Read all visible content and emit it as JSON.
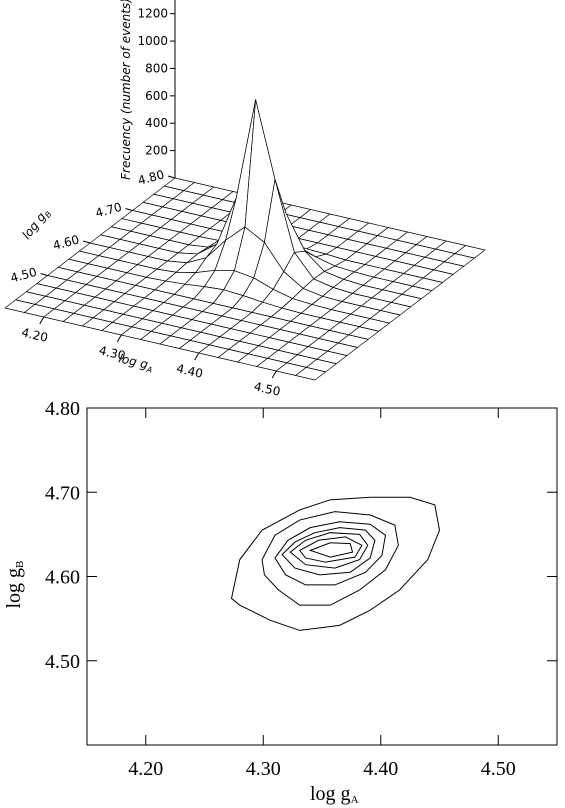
{
  "chart_data": [
    {
      "type": "surface",
      "xlabel": "log g",
      "xlabel_sub": "A",
      "ylabel": "log g",
      "ylabel_sub": "B",
      "zlabel": "Frecuency (number of events)",
      "x": [
        4.15,
        4.175,
        4.2,
        4.225,
        4.25,
        4.275,
        4.3,
        4.325,
        4.35,
        4.375,
        4.4,
        4.425,
        4.45,
        4.475,
        4.5,
        4.525,
        4.55
      ],
      "y": [
        4.4,
        4.425,
        4.45,
        4.475,
        4.5,
        4.525,
        4.55,
        4.575,
        4.6,
        4.625,
        4.65,
        4.675,
        4.7,
        4.725,
        4.75,
        4.775,
        4.8
      ],
      "z": [
        [
          0,
          0,
          0,
          0,
          0,
          0,
          0,
          0,
          0,
          0,
          0,
          0,
          0,
          0,
          0,
          0,
          0
        ],
        [
          0,
          0,
          0,
          0,
          0,
          0,
          0,
          0,
          0,
          0,
          0,
          0,
          0,
          0,
          0,
          0,
          0
        ],
        [
          0,
          0,
          0,
          0,
          0,
          0,
          0,
          0,
          0,
          0,
          0,
          0,
          0,
          0,
          0,
          0,
          0
        ],
        [
          0,
          0,
          0,
          0,
          0,
          0,
          0,
          0,
          0,
          0,
          0,
          0,
          0,
          0,
          0,
          0,
          0
        ],
        [
          0,
          0,
          0,
          0,
          0,
          0,
          0,
          0,
          0,
          0,
          0,
          0,
          0,
          0,
          0,
          0,
          0
        ],
        [
          0,
          0,
          0,
          0,
          0,
          0,
          0,
          0,
          0,
          0,
          0,
          0,
          0,
          0,
          0,
          0,
          0
        ],
        [
          0,
          0,
          0,
          0,
          0,
          5,
          15,
          30,
          40,
          30,
          15,
          5,
          0,
          0,
          0,
          0,
          0
        ],
        [
          0,
          0,
          0,
          0,
          0,
          10,
          40,
          90,
          120,
          100,
          50,
          15,
          5,
          0,
          0,
          0,
          0
        ],
        [
          0,
          0,
          0,
          0,
          0,
          20,
          90,
          250,
          380,
          300,
          120,
          30,
          5,
          0,
          0,
          0,
          0
        ],
        [
          0,
          0,
          0,
          0,
          0,
          25,
          130,
          500,
          1250,
          700,
          200,
          40,
          10,
          0,
          0,
          0,
          0
        ],
        [
          0,
          0,
          0,
          0,
          0,
          15,
          90,
          300,
          550,
          400,
          150,
          35,
          10,
          0,
          0,
          0,
          0
        ],
        [
          0,
          0,
          0,
          0,
          0,
          5,
          30,
          80,
          120,
          100,
          50,
          15,
          5,
          0,
          0,
          0,
          0
        ],
        [
          0,
          0,
          0,
          0,
          0,
          0,
          5,
          15,
          20,
          15,
          10,
          0,
          0,
          0,
          0,
          0,
          0
        ],
        [
          0,
          0,
          0,
          0,
          0,
          0,
          0,
          0,
          0,
          0,
          0,
          0,
          0,
          0,
          0,
          0,
          0
        ],
        [
          0,
          0,
          0,
          0,
          0,
          0,
          0,
          0,
          0,
          0,
          0,
          0,
          0,
          0,
          0,
          0,
          0
        ],
        [
          0,
          0,
          0,
          0,
          0,
          0,
          0,
          0,
          0,
          0,
          0,
          0,
          0,
          0,
          0,
          0,
          0
        ],
        [
          0,
          0,
          0,
          0,
          0,
          0,
          0,
          0,
          0,
          0,
          0,
          0,
          0,
          0,
          0,
          0,
          0
        ]
      ],
      "xlim": [
        4.15,
        4.55
      ],
      "ylim": [
        4.4,
        4.8
      ],
      "zlim": [
        0,
        1300
      ],
      "xticks": [
        {
          "value": 4.2,
          "label": "4.20"
        },
        {
          "value": 4.3,
          "label": "4.30"
        },
        {
          "value": 4.4,
          "label": "4.40"
        },
        {
          "value": 4.5,
          "label": "4.50"
        }
      ],
      "yticks": [
        {
          "value": 4.5,
          "label": "4.50"
        },
        {
          "value": 4.6,
          "label": "4.60"
        },
        {
          "value": 4.7,
          "label": "4.70"
        },
        {
          "value": 4.8,
          "label": "4.80"
        }
      ],
      "zticks": [
        200,
        400,
        600,
        800,
        1000,
        1200
      ]
    },
    {
      "type": "contour",
      "xlabel": "log g",
      "xlabel_sub": "A",
      "ylabel": "log g",
      "ylabel_sub": "B",
      "xlim": [
        4.15,
        4.55
      ],
      "ylim": [
        4.4,
        4.8
      ],
      "xticks": [
        {
          "value": 4.2,
          "label": "4.20"
        },
        {
          "value": 4.3,
          "label": "4.30"
        },
        {
          "value": 4.4,
          "label": "4.40"
        },
        {
          "value": 4.5,
          "label": "4.50"
        }
      ],
      "yticks": [
        {
          "value": 4.5,
          "label": "4.50"
        },
        {
          "value": 4.6,
          "label": "4.60"
        },
        {
          "value": 4.7,
          "label": "4.70"
        },
        {
          "value": 4.8,
          "label": "4.80"
        }
      ],
      "contours": [
        {
          "x": [
            4.273,
            4.28,
            4.299,
            4.331,
            4.357,
            4.391,
            4.425,
            4.446,
            4.45,
            4.44,
            4.416,
            4.391,
            4.365,
            4.331,
            4.306,
            4.28
          ],
          "y": [
            4.574,
            4.62,
            4.655,
            4.679,
            4.691,
            4.694,
            4.694,
            4.685,
            4.655,
            4.62,
            4.584,
            4.56,
            4.542,
            4.536,
            4.548,
            4.566
          ]
        },
        {
          "x": [
            4.299,
            4.31,
            4.331,
            4.361,
            4.391,
            4.412,
            4.415,
            4.404,
            4.382,
            4.357,
            4.331,
            4.313,
            4.301
          ],
          "y": [
            4.62,
            4.649,
            4.667,
            4.677,
            4.673,
            4.661,
            4.637,
            4.608,
            4.584,
            4.566,
            4.566,
            4.584,
            4.602
          ]
        },
        {
          "x": [
            4.31,
            4.321,
            4.34,
            4.365,
            4.391,
            4.404,
            4.401,
            4.387,
            4.361,
            4.336,
            4.319
          ],
          "y": [
            4.622,
            4.643,
            4.658,
            4.665,
            4.662,
            4.649,
            4.625,
            4.605,
            4.59,
            4.59,
            4.602
          ]
        },
        {
          "x": [
            4.316,
            4.327,
            4.344,
            4.365,
            4.387,
            4.395,
            4.391,
            4.374,
            4.348,
            4.327
          ],
          "y": [
            4.626,
            4.641,
            4.652,
            4.658,
            4.655,
            4.643,
            4.622,
            4.605,
            4.602,
            4.61
          ]
        },
        {
          "x": [
            4.323,
            4.336,
            4.357,
            4.382,
            4.389,
            4.382,
            4.361,
            4.336
          ],
          "y": [
            4.629,
            4.643,
            4.652,
            4.65,
            4.637,
            4.62,
            4.61,
            4.614
          ]
        },
        {
          "x": [
            4.331,
            4.347,
            4.37,
            4.384,
            4.378,
            4.353,
            4.336
          ],
          "y": [
            4.631,
            4.643,
            4.647,
            4.637,
            4.623,
            4.617,
            4.622
          ]
        },
        {
          "x": [
            4.34,
            4.357,
            4.374,
            4.376,
            4.357
          ],
          "y": [
            4.631,
            4.64,
            4.639,
            4.629,
            4.623
          ]
        }
      ]
    }
  ]
}
